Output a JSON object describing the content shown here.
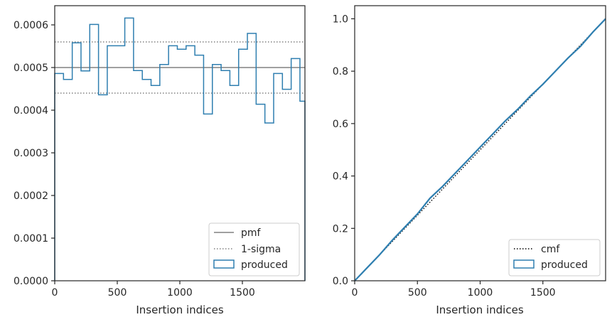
{
  "chart_data": [
    {
      "type": "histogram",
      "title": "",
      "xlabel": "Insertion indices",
      "ylabel": "",
      "xlim": [
        0,
        2000
      ],
      "ylim": [
        0,
        0.000645
      ],
      "xticks": [
        0,
        500,
        1000,
        1500
      ],
      "yticks": [
        0,
        0.0001,
        0.0002,
        0.0003,
        0.0004,
        0.0005,
        0.0006
      ],
      "ytick_labels": [
        "0.0000",
        "0.0001",
        "0.0002",
        "0.0003",
        "0.0004",
        "0.0005",
        "0.0006"
      ],
      "grid": false,
      "legend_position": "lower-right",
      "bin_edges": [
        0,
        70,
        140,
        210,
        280,
        350,
        420,
        490,
        560,
        630,
        700,
        770,
        840,
        910,
        980,
        1050,
        1120,
        1190,
        1260,
        1330,
        1400,
        1470,
        1540,
        1610,
        1680,
        1750,
        1820,
        1890,
        1960,
        2000
      ],
      "produced": [
        0.000486,
        0.000472,
        0.000558,
        0.000492,
        0.000601,
        0.000436,
        0.000551,
        0.000551,
        0.000616,
        0.000493,
        0.000472,
        0.000458,
        0.000507,
        0.000551,
        0.000543,
        0.000551,
        0.000529,
        0.000391,
        0.000507,
        0.000493,
        0.000458,
        0.000543,
        0.00058,
        0.000414,
        0.00037,
        0.000486,
        0.000449,
        0.000521,
        0.000421
      ],
      "pmf": 0.0005,
      "sigma_bounds": [
        0.00044,
        0.00056
      ],
      "legend": [
        "pmf",
        "1-sigma",
        "produced"
      ],
      "colors": {
        "produced": "#2f7fb0",
        "pmf": "#808080",
        "sigma": "#808080"
      }
    },
    {
      "type": "line",
      "title": "",
      "xlabel": "Insertion indices",
      "ylabel": "",
      "xlim": [
        0,
        2000
      ],
      "ylim": [
        0,
        1.05
      ],
      "xticks": [
        0,
        500,
        1000,
        1500
      ],
      "yticks": [
        0,
        0.2,
        0.4,
        0.6,
        0.8,
        1.0
      ],
      "ytick_labels": [
        "0.0",
        "0.2",
        "0.4",
        "0.6",
        "0.8",
        "1.0"
      ],
      "grid": false,
      "legend_position": "lower-right",
      "cmf": {
        "x": [
          0,
          2000
        ],
        "y": [
          0,
          1.0
        ]
      },
      "produced": {
        "x": [
          0,
          100,
          200,
          300,
          400,
          500,
          600,
          700,
          800,
          900,
          1000,
          1100,
          1200,
          1300,
          1400,
          1500,
          1600,
          1700,
          1800,
          1900,
          2000
        ],
        "y": [
          0,
          0.05,
          0.1,
          0.155,
          0.205,
          0.255,
          0.315,
          0.36,
          0.41,
          0.46,
          0.51,
          0.56,
          0.61,
          0.655,
          0.705,
          0.75,
          0.8,
          0.85,
          0.895,
          0.95,
          1.0
        ]
      },
      "legend": [
        "cmf",
        "produced"
      ],
      "colors": {
        "produced": "#2f7fb0",
        "cmf": "#000000"
      }
    }
  ]
}
